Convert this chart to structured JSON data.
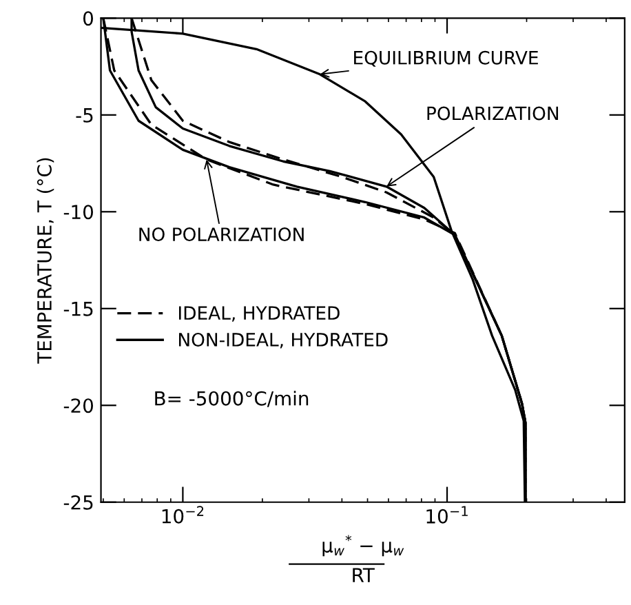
{
  "chart_data": {
    "type": "line",
    "xlabel": "μ$_{w}$$^{*}$ − μ$_{w}$\nRT",
    "ylabel": "TEMPERATURE, T (°C)",
    "log": "x",
    "xlim": [
      0.0049,
      0.47
    ],
    "xticks": [
      {
        "value": 0.01,
        "label": "10$^{−2}$"
      },
      {
        "value": 0.1,
        "label": "10$^{−1}$"
      }
    ],
    "ylim": [
      -25,
      0
    ],
    "yticks": [
      0,
      -5,
      -10,
      -15,
      -20,
      -25
    ],
    "grid": false,
    "legend": "left",
    "series": [
      {
        "color": "#000000",
        "line_style": "solid",
        "x": [
          0.0049,
          0.01,
          0.019,
          0.033,
          0.049,
          0.067,
          0.089,
          0.104,
          0.125,
          0.148,
          0.181,
          0.195,
          0.197
        ],
        "values": [
          -0.5,
          -0.8,
          -1.6,
          -2.9,
          -4.3,
          -6.0,
          -8.2,
          -11.0,
          -13.5,
          -16.4,
          -19.2,
          -20.8,
          -25
        ]
      },
      {
        "name": "NON-IDEAL, HYDRATED",
        "color": "#000000",
        "line_style": "solid",
        "x": [
          0.0064,
          0.0064,
          0.0068,
          0.0079,
          0.01,
          0.015,
          0.024,
          0.036,
          0.059,
          0.082,
          0.107,
          0.161,
          0.192,
          0.198,
          0.198
        ],
        "values": [
          0,
          -0.7,
          -2.7,
          -4.6,
          -5.7,
          -6.6,
          -7.4,
          -7.9,
          -8.7,
          -9.8,
          -11.2,
          -16.4,
          -19.9,
          -20.9,
          -25
        ]
      },
      {
        "name": "IDEAL, HYDRATED",
        "color": "#000000",
        "line_style": "dashed",
        "x": [
          0.0064,
          0.0076,
          0.01,
          0.015,
          0.024,
          0.04,
          0.059,
          0.089,
          0.107,
          0.161,
          0.192,
          0.198,
          0.198
        ],
        "values": [
          0,
          -3.2,
          -5.3,
          -6.4,
          -7.3,
          -8.2,
          -9.0,
          -10.3,
          -11.2,
          -16.4,
          -19.9,
          -20.9,
          -25
        ]
      },
      {
        "color": "#000000",
        "line_style": "solid",
        "x": [
          0.005,
          0.0053,
          0.0068,
          0.01,
          0.015,
          0.027,
          0.049,
          0.082,
          0.107,
          0.161,
          0.192,
          0.198,
          0.198
        ],
        "values": [
          0,
          -2.7,
          -5.3,
          -6.8,
          -7.7,
          -8.7,
          -9.5,
          -10.3,
          -11.2,
          -16.4,
          -19.9,
          -20.9,
          -25
        ]
      },
      {
        "color": "#000000",
        "line_style": "dashed",
        "x": [
          0.005,
          0.0055,
          0.0076,
          0.0123,
          0.022,
          0.049,
          0.082,
          0.107,
          0.161,
          0.192,
          0.198,
          0.198
        ],
        "values": [
          0,
          -2.7,
          -5.5,
          -7.3,
          -8.6,
          -9.6,
          -10.4,
          -11.1,
          -16.4,
          -19.9,
          -20.9,
          -25
        ]
      }
    ],
    "annotations": [
      {
        "text": "EQUILIBRIUM CURVE",
        "x": 0.033,
        "y": -2.9
      },
      {
        "text": "POLARIZATION",
        "x": 0.059,
        "y": -8.7
      },
      {
        "text": "NO POLARIZATION",
        "x": 0.0123,
        "y": -7.3
      },
      "B= -5000°C/min"
    ]
  }
}
